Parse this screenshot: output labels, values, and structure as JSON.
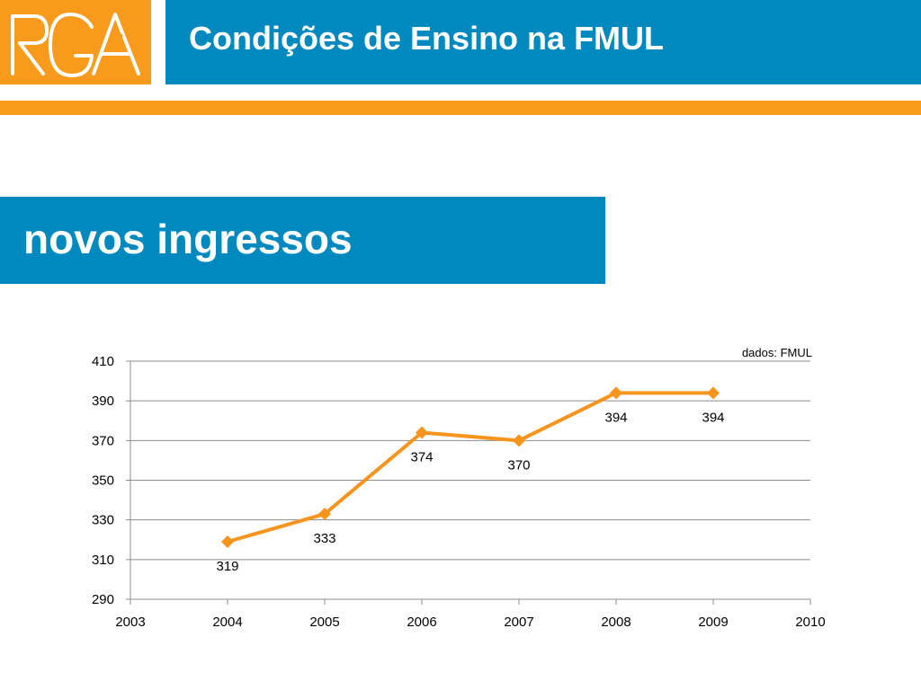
{
  "header": {
    "logo_text": "RGA",
    "title": "Condições de Ensino na FMUL"
  },
  "section": {
    "title": "novos ingressos"
  },
  "colors": {
    "orange": "#f89a1c",
    "blue": "#0089bf",
    "line": "#f7941d",
    "grid": "#8c8c8c"
  },
  "chart_data": {
    "type": "line",
    "source_note": "dados: FMUL",
    "x": [
      2004,
      2005,
      2006,
      2007,
      2008,
      2009
    ],
    "values": [
      319,
      333,
      374,
      370,
      394,
      394
    ],
    "data_labels": [
      "319",
      "333",
      "374",
      "370",
      "394",
      "394"
    ],
    "xlim": [
      2003,
      2010
    ],
    "ylim": [
      290,
      410
    ],
    "x_ticks": [
      "2003",
      "2004",
      "2005",
      "2006",
      "2007",
      "2008",
      "2009",
      "2010"
    ],
    "y_ticks": [
      "290",
      "310",
      "330",
      "350",
      "370",
      "390",
      "410"
    ],
    "grid": true,
    "legend": "none"
  }
}
